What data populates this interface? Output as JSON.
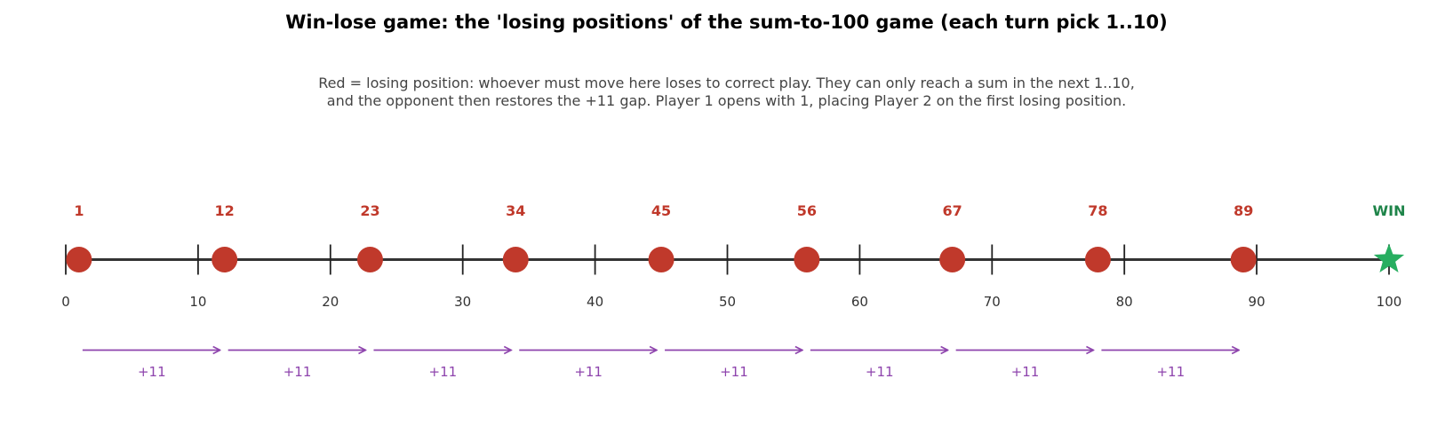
{
  "title": "Win-lose game: the 'losing positions' of the sum-to-100 game (each turn pick 1..10)",
  "subtitle_lines": [
    "Red = losing position: whoever must move here loses to correct play. They can only reach a sum in the next 1..10,",
    "and the opponent then restores the +11 gap. Player 1 opens with 1, placing Player 2 on the first losing position."
  ],
  "colors": {
    "losing": "#c0392b",
    "win": "#27ae60",
    "win_label": "#1e8449",
    "arrow": "#8e44ad",
    "axis": "#333333"
  },
  "axis": {
    "min": 0,
    "max": 100,
    "ticks": [
      0,
      10,
      20,
      30,
      40,
      50,
      60,
      70,
      80,
      90,
      100
    ]
  },
  "losing_positions": [
    1,
    12,
    23,
    34,
    45,
    56,
    67,
    78,
    89
  ],
  "target": {
    "value": 100,
    "label": "WIN",
    "icon": "star-icon"
  },
  "gap_label": "+11"
}
